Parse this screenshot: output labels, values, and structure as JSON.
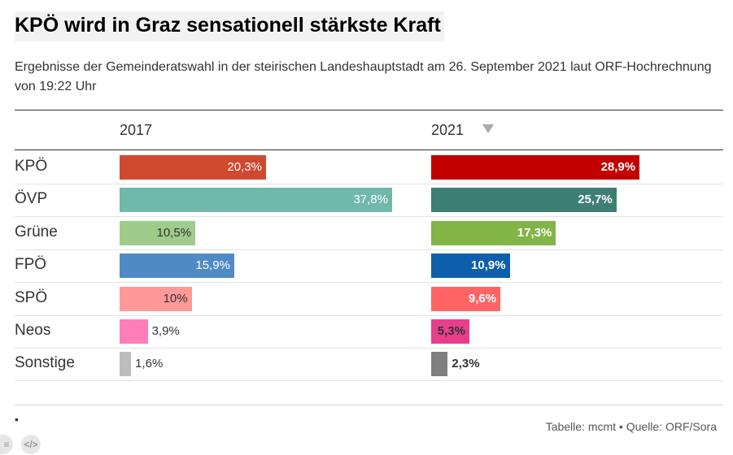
{
  "title": "KPÖ wird in Graz sensationell stärkste Kraft",
  "subtitle": "Ergebnisse der Gemeinderatswahl in der steirischen Landeshauptstadt am 26. September 2021 laut ORF-Hochrechnung von 19:22 Uhr",
  "footer": {
    "bullet": "•",
    "source": "Tabelle: mcmt • Quelle: ORF/Sora",
    "icon_share": "≡",
    "icon_embed": "</>"
  },
  "chart_data": {
    "type": "bar",
    "title": "KPÖ wird in Graz sensationell stärkste Kraft",
    "columns": [
      "2017",
      "2021"
    ],
    "sorted_by": "2021",
    "categories": [
      "KPÖ",
      "ÖVP",
      "Grüne",
      "FPÖ",
      "SPÖ",
      "Neos",
      "Sonstige"
    ],
    "series": [
      {
        "name": "2017",
        "values": [
          20.3,
          37.8,
          10.5,
          15.9,
          10,
          3.9,
          1.6
        ],
        "labels": [
          "20,3%",
          "37,8%",
          "10,5%",
          "15,9%",
          "10%",
          "3,9%",
          "1,6%"
        ],
        "colors": [
          "#d0492f",
          "#70b8aa",
          "#9fcb8b",
          "#4f8ac5",
          "#ff9898",
          "#ff7eb9",
          "#bdbdbd"
        ],
        "label_colors": [
          "#ffffff",
          "#ffffff",
          "#333333",
          "#ffffff",
          "#333333",
          "#333333",
          "#333333"
        ]
      },
      {
        "name": "2021",
        "values": [
          28.9,
          25.7,
          17.3,
          10.9,
          9.6,
          5.3,
          2.3
        ],
        "labels": [
          "28,9%",
          "25,7%",
          "17,3%",
          "10,9%",
          "9,6%",
          "5,3%",
          "2,3%"
        ],
        "colors": [
          "#c20000",
          "#3d7f73",
          "#82b446",
          "#0d5fac",
          "#ff6464",
          "#e83e8c",
          "#7f7f7f"
        ],
        "label_colors": [
          "#ffffff",
          "#ffffff",
          "#ffffff",
          "#ffffff",
          "#ffffff",
          "#333333",
          "#333333"
        ]
      }
    ],
    "xlim": [
      0,
      37.8
    ]
  }
}
